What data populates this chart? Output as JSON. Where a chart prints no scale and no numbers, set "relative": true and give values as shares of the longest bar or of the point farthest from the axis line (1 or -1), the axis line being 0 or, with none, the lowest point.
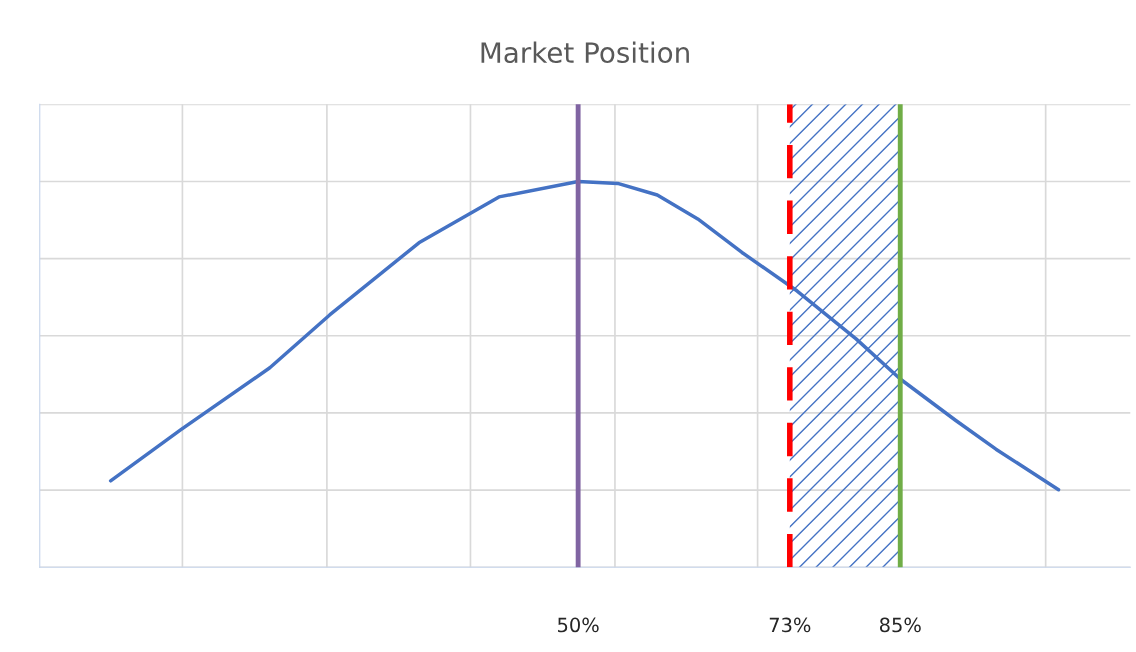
{
  "chart_data": {
    "type": "line",
    "title": "Market Position",
    "relative": true,
    "x": [
      -0.8,
      6.8,
      16.5,
      23.0,
      32.7,
      41.4,
      50,
      54.3,
      58.6,
      63.0,
      67.8,
      73.8,
      80.2,
      85.0,
      91.0,
      95.4,
      102.2
    ],
    "series": [
      {
        "color": "#4472c4",
        "values": [
          0.224,
          0.356,
          0.517,
          0.654,
          0.841,
          0.96,
          1.0,
          0.995,
          0.965,
          0.903,
          0.816,
          0.716,
          0.592,
          0.488,
          0.381,
          0.306,
          0.201
        ]
      }
    ],
    "xlim": [
      -8.5,
      110
    ],
    "xticks": [
      {
        "value": 7,
        "label": null
      },
      {
        "value": 22.7,
        "label": null
      },
      {
        "value": 38.3,
        "label": null
      },
      {
        "value": 50,
        "label": "50%"
      },
      {
        "value": 54,
        "label": null
      },
      {
        "value": 69.5,
        "label": null
      },
      {
        "value": 73,
        "label": "73%"
      },
      {
        "value": 85,
        "label": "85%"
      },
      {
        "value": 100.8,
        "label": null
      }
    ],
    "grid": true,
    "marker": "none",
    "line_style": "solid",
    "ref_lines": [
      {
        "axis": "x",
        "value": 50,
        "color": "#8064a2",
        "line_style": "solid"
      },
      {
        "axis": "x",
        "value": 73,
        "color": "#ff0000",
        "line_style": "dashed"
      },
      {
        "axis": "x",
        "value": 85,
        "color": "#70ad47",
        "line_style": "solid"
      }
    ],
    "bands": [
      {
        "axis": "x",
        "from": 73,
        "to": 85,
        "color": "#4472c4"
      }
    ]
  }
}
